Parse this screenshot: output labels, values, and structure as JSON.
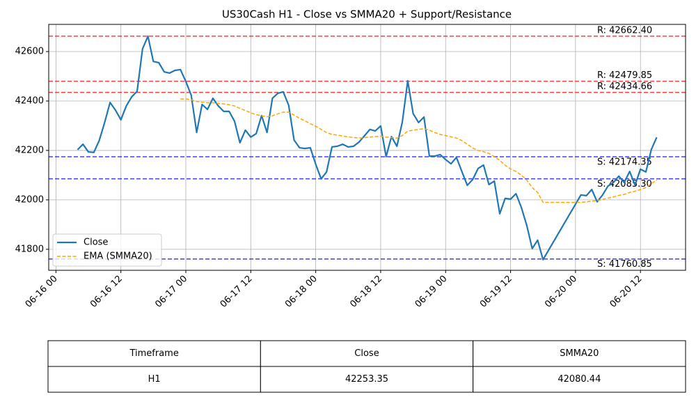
{
  "chart_data": {
    "type": "line",
    "title": "US30Cash H1 - Close vs SMMA20 + Support/Resistance",
    "x": [
      "06-16 04",
      "06-16 05",
      "06-16 06",
      "06-16 07",
      "06-16 08",
      "06-16 09",
      "06-16 10",
      "06-16 11",
      "06-16 12",
      "06-16 13",
      "06-16 14",
      "06-16 15",
      "06-16 16",
      "06-16 17",
      "06-16 18",
      "06-16 19",
      "06-16 20",
      "06-16 21",
      "06-16 22",
      "06-16 23",
      "06-17 00",
      "06-17 01",
      "06-17 02",
      "06-17 03",
      "06-17 04",
      "06-17 05",
      "06-17 06",
      "06-17 07",
      "06-17 08",
      "06-17 09",
      "06-17 10",
      "06-17 11",
      "06-17 12",
      "06-17 13",
      "06-17 14",
      "06-17 15",
      "06-17 16",
      "06-17 17",
      "06-17 18",
      "06-17 19",
      "06-17 20",
      "06-17 21",
      "06-17 22",
      "06-17 23",
      "06-18 00",
      "06-18 01",
      "06-18 02",
      "06-18 03",
      "06-18 04",
      "06-18 05",
      "06-18 06",
      "06-18 07",
      "06-18 08",
      "06-18 09",
      "06-18 10",
      "06-18 11",
      "06-18 12",
      "06-18 13",
      "06-18 14",
      "06-18 15",
      "06-18 16",
      "06-18 17",
      "06-18 18",
      "06-18 19",
      "06-18 20",
      "06-18 21",
      "06-18 22",
      "06-18 23",
      "06-19 00",
      "06-19 01",
      "06-19 02",
      "06-19 03",
      "06-19 04",
      "06-19 05",
      "06-19 06",
      "06-19 07",
      "06-19 08",
      "06-19 09",
      "06-19 10",
      "06-19 11",
      "06-19 12",
      "06-19 13",
      "06-19 14",
      "06-19 15",
      "06-19 16",
      "06-19 17",
      "06-19 18",
      "06-20 01",
      "06-20 02",
      "06-20 03",
      "06-20 04",
      "06-20 05",
      "06-20 06",
      "06-20 07",
      "06-20 08",
      "06-20 09",
      "06-20 10",
      "06-20 11",
      "06-20 12",
      "06-20 13",
      "06-20 14",
      "06-20 15"
    ],
    "series": [
      {
        "name": "Close",
        "color": "#1f77b4",
        "dashed": false,
        "values": [
          42203,
          42225,
          42194,
          42192,
          42240,
          42313,
          42394,
          42363,
          42324,
          42380,
          42417,
          42439,
          42611,
          42662,
          42560,
          42555,
          42518,
          42513,
          42524,
          42527,
          42479,
          42423,
          42273,
          42386,
          42366,
          42411,
          42380,
          42358,
          42358,
          42318,
          42231,
          42282,
          42254,
          42268,
          42341,
          42273,
          42411,
          42431,
          42437,
          42383,
          42242,
          42211,
          42208,
          42211,
          42144,
          42085,
          42113,
          42214,
          42217,
          42225,
          42214,
          42217,
          42234,
          42259,
          42285,
          42279,
          42299,
          42175,
          42256,
          42217,
          42315,
          42482,
          42349,
          42313,
          42335,
          42177,
          42177,
          42183,
          42163,
          42146,
          42172,
          42115,
          42059,
          42082,
          42127,
          42141,
          42062,
          42076,
          41944,
          42006,
          42003,
          42025,
          41969,
          41896,
          41803,
          41837,
          41758,
          42020,
          42017,
          42042,
          41992,
          42020,
          42056,
          42070,
          42096,
          42070,
          42115,
          42060,
          42124,
          42113,
          42203,
          42253.35
        ]
      },
      {
        "name": "EMA (SMMA20)",
        "color": "orange",
        "dashed": true,
        "values": [
          null,
          null,
          null,
          null,
          null,
          null,
          null,
          null,
          null,
          null,
          null,
          null,
          null,
          null,
          null,
          null,
          null,
          null,
          null,
          42408,
          42408,
          42405,
          42398,
          42395,
          42393,
          42393,
          42390,
          42388,
          42385,
          42380,
          42370,
          42362,
          42352,
          42345,
          42340,
          42336,
          42340,
          42348,
          42355,
          42355,
          42343,
          42330,
          42320,
          42308,
          42298,
          42285,
          42272,
          42265,
          42262,
          42258,
          42255,
          42252,
          42250,
          42252,
          42254,
          42256,
          42258,
          42254,
          42252,
          42250,
          42260,
          42278,
          42282,
          42285,
          42288,
          42282,
          42272,
          42265,
          42260,
          42255,
          42250,
          42240,
          42225,
          42210,
          42200,
          42195,
          42188,
          42175,
          42160,
          42140,
          42125,
          42115,
          42100,
          42080,
          42050,
          42030,
          41990,
          41990,
          41992,
          41995,
          41997,
          42002,
          42007,
          42012,
          42018,
          42022,
          42030,
          42035,
          42042,
          42050,
          42065,
          42080.44
        ]
      }
    ],
    "resistance": {
      "color": "red",
      "levels": [
        {
          "value": 42662.4,
          "label": "R: 42662.40"
        },
        {
          "value": 42479.85,
          "label": "R: 42479.85"
        },
        {
          "value": 42434.66,
          "label": "R: 42434.66"
        }
      ]
    },
    "support": {
      "color": "blue",
      "levels": [
        {
          "value": 42174.35,
          "label": "S: 42174.35"
        },
        {
          "value": 42085.3,
          "label": "S: 42085.30"
        },
        {
          "value": 41760.85,
          "label": "S: 41760.85"
        }
      ]
    },
    "xlim": [
      "06-15 22:40",
      "06-20 20:20"
    ],
    "xticks": [
      "06-16 00",
      "06-16 12",
      "06-17 00",
      "06-17 12",
      "06-18 00",
      "06-18 12",
      "06-19 00",
      "06-19 12",
      "06-20 00",
      "06-20 12"
    ],
    "ylim": [
      41715,
      42710
    ],
    "yticks": [
      41800,
      42000,
      42200,
      42400,
      42600
    ],
    "grid": true,
    "legend": "lower left"
  },
  "table": {
    "columns": [
      "Timeframe",
      "Close",
      "SMMA20"
    ],
    "rows": [
      [
        "H1",
        "42253.35",
        "42080.44"
      ]
    ]
  }
}
